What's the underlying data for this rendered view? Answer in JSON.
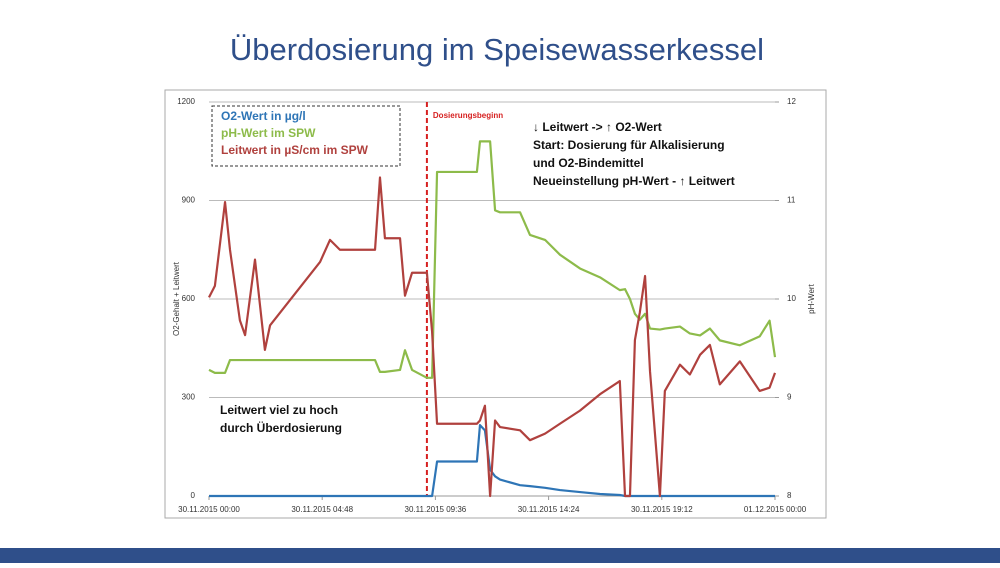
{
  "chart_data": {
    "type": "line",
    "title": "Überdosierung im Speisewasserkessel",
    "y_label": "O2-Gehalt + Leitwert",
    "y2_label": "pH-Wert",
    "xlim": [
      0,
      24
    ],
    "xticks": [
      {
        "value": 0,
        "label": "30.11.2015 00:00"
      },
      {
        "value": 4.8,
        "label": "30.11.2015 04:48"
      },
      {
        "value": 9.6,
        "label": "30.11.2015 09:36"
      },
      {
        "value": 14.4,
        "label": "30.11.2015 14:24"
      },
      {
        "value": 19.2,
        "label": "30.11.2015 19:12"
      },
      {
        "value": 24,
        "label": "01.12.2015 00:00"
      }
    ],
    "ylim": [
      0,
      1200
    ],
    "yticks": [
      0,
      300,
      600,
      900,
      1200
    ],
    "y2lim": [
      8,
      12
    ],
    "y2ticks": [
      8,
      9,
      10,
      11,
      12
    ],
    "grid": true,
    "legend": "top-left",
    "x": [
      0,
      0.25,
      0.68,
      0.89,
      1.31,
      1.53,
      1.95,
      2.37,
      2.59,
      4.71,
      5.13,
      5.55,
      7.04,
      7.25,
      7.46,
      8.1,
      8.31,
      8.61,
      9.24,
      9.46,
      9.67,
      11.36,
      11.49,
      11.7,
      11.92,
      12.13,
      12.34,
      13.19,
      13.61,
      14.25,
      14.88,
      15.73,
      16.58,
      17.42,
      17.64,
      17.85,
      18.06,
      18.27,
      18.49,
      18.7,
      19.12,
      19.33,
      19.97,
      20.39,
      20.82,
      21.24,
      21.66,
      22.51,
      23.35,
      23.77,
      24
    ],
    "series": [
      {
        "name": "O2-Wert in µg/l",
        "color": "#2e75b6",
        "axis": "y",
        "values": [
          0,
          0,
          0,
          0,
          0,
          0,
          0,
          0,
          0,
          0,
          0,
          0,
          0,
          0,
          0,
          0,
          0,
          0,
          0,
          0,
          105,
          105,
          216,
          200,
          80,
          60,
          50,
          33,
          30,
          25,
          18,
          12,
          6,
          3,
          0,
          0,
          0,
          0,
          0,
          0,
          0,
          0,
          0,
          0,
          0,
          0,
          0,
          0,
          0,
          0,
          0
        ]
      },
      {
        "name": "pH-Wert im SPW",
        "color": "#8dbb4a",
        "axis": "y2",
        "values": [
          9.28,
          9.25,
          9.25,
          9.38,
          9.38,
          9.38,
          9.38,
          9.38,
          9.38,
          9.38,
          9.38,
          9.38,
          9.38,
          9.26,
          9.26,
          9.28,
          9.48,
          9.28,
          9.2,
          9.2,
          11.29,
          11.29,
          11.6,
          11.6,
          11.6,
          10.9,
          10.88,
          10.88,
          10.65,
          10.6,
          10.45,
          10.31,
          10.22,
          10.09,
          10.1,
          10.0,
          9.85,
          9.79,
          9.85,
          9.7,
          9.69,
          9.7,
          9.72,
          9.65,
          9.63,
          9.7,
          9.58,
          9.53,
          9.62,
          9.78,
          9.41
        ]
      },
      {
        "name": "Leitwert in µS/cm im SPW",
        "color": "#b0413e",
        "axis": "y",
        "values": [
          605,
          640,
          895,
          750,
          535,
          490,
          720,
          445,
          520,
          713,
          780,
          750,
          750,
          970,
          785,
          785,
          610,
          680,
          680,
          500,
          220,
          220,
          230,
          275,
          0,
          230,
          210,
          200,
          170,
          190,
          220,
          260,
          310,
          350,
          0,
          0,
          475,
          560,
          670,
          380,
          0,
          320,
          400,
          370,
          430,
          460,
          340,
          410,
          320,
          330,
          375
        ]
      }
    ],
    "dosing": {
      "text": "Dosierungsbeginn",
      "x": 9.24
    },
    "note_right": [
      "↓ Leitwert  ->  ↑ O2-Wert",
      "Start: Dosierung für Alkalisierung",
      "und O2-Bindemittel",
      "Neueinstellung pH-Wert  -  ↑ Leitwert"
    ],
    "note_left": [
      "Leitwert viel zu hoch",
      "durch Überdosierung"
    ]
  }
}
